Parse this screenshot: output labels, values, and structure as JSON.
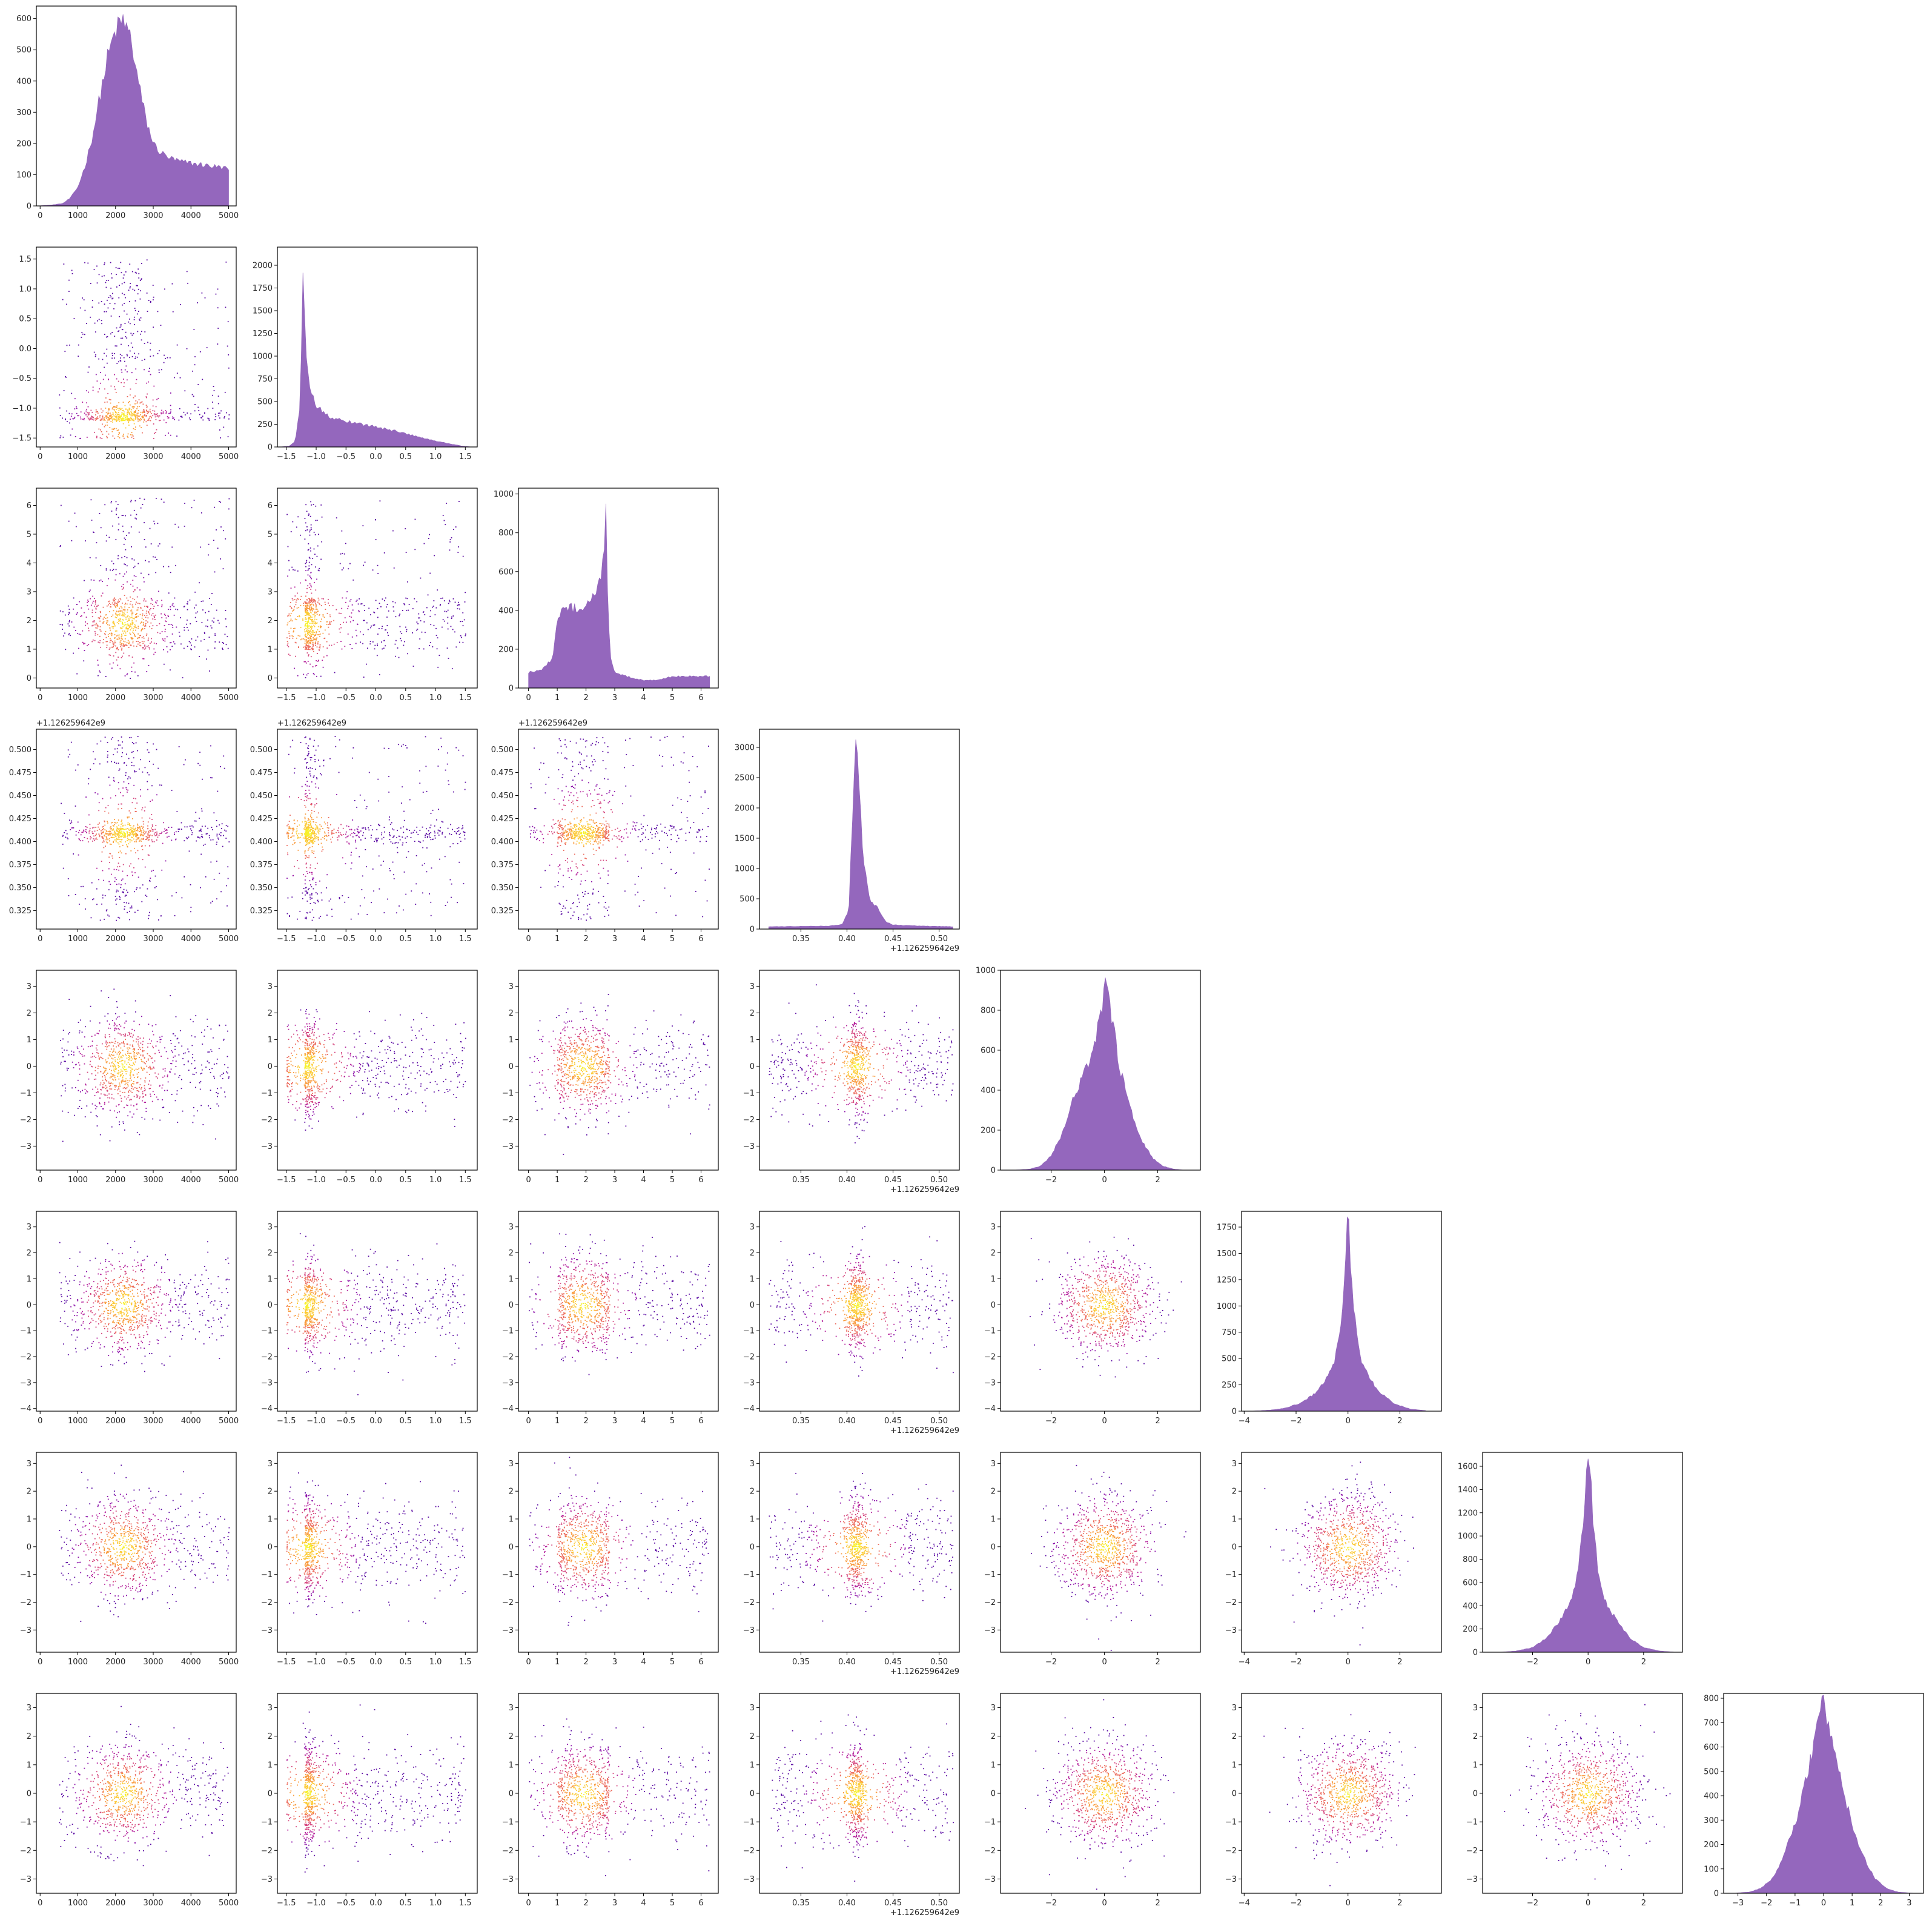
{
  "chart_data": {
    "type": "corner-plot",
    "n_vars": 8,
    "hist_color": "#9467bd",
    "cmap": [
      "#5a0aa3",
      "#8a0ea8",
      "#b31e9a",
      "#d4437c",
      "#ec6a5c",
      "#f99a3b",
      "#fcca35",
      "#f7f02a"
    ],
    "grid": false,
    "legend": "none",
    "variables": [
      {
        "lim": [
          -100,
          5200
        ],
        "ticks": [
          0,
          1000,
          2000,
          3000,
          4000,
          5000
        ],
        "tick_labels": [
          "0",
          "1000",
          "2000",
          "3000",
          "4000",
          "5000"
        ],
        "offset_label": ""
      },
      {
        "lim": [
          -1.65,
          1.7
        ],
        "ticks": [
          -1.5,
          -1.0,
          -0.5,
          0.0,
          0.5,
          1.0,
          1.5
        ],
        "tick_labels": [
          "−1.5",
          "−1.0",
          "−0.5",
          "0.0",
          "0.5",
          "1.0",
          "1.5"
        ],
        "offset_label": ""
      },
      {
        "lim": [
          -0.35,
          6.6
        ],
        "ticks": [
          0,
          1,
          2,
          3,
          4,
          5,
          6
        ],
        "tick_labels": [
          "0",
          "1",
          "2",
          "3",
          "4",
          "5",
          "6"
        ],
        "offset_label": ""
      },
      {
        "lim": [
          0.305,
          0.522
        ],
        "ticks": [
          0.325,
          0.35,
          0.375,
          0.4,
          0.425,
          0.45,
          0.475,
          0.5
        ],
        "tick_labels": [
          "0.325",
          "0.350",
          "0.375",
          "0.400",
          "0.425",
          "0.450",
          "0.475",
          "0.500"
        ],
        "x_ticks": [
          0.35,
          0.4,
          0.45,
          0.5
        ],
        "x_tick_labels": [
          "0.35",
          "0.40",
          "0.45",
          "0.50"
        ],
        "offset_label": "+1.126259642e9"
      },
      {
        "lim": [
          -3.9,
          3.6
        ],
        "ticks": [
          -3,
          -2,
          -1,
          0,
          1,
          2,
          3
        ],
        "tick_labels": [
          "−3",
          "−2",
          "−1",
          "0",
          "1",
          "2",
          "3"
        ],
        "x_ticks": [
          -2,
          0,
          2
        ],
        "x_tick_labels": [
          "−2",
          "0",
          "2"
        ],
        "offset_label": ""
      },
      {
        "lim": [
          -4.1,
          3.6
        ],
        "ticks": [
          -4,
          -3,
          -2,
          -1,
          0,
          1,
          2,
          3
        ],
        "tick_labels": [
          "−4",
          "−3",
          "−2",
          "−1",
          "0",
          "1",
          "2",
          "3"
        ],
        "x_ticks": [
          -4,
          -2,
          0,
          2
        ],
        "x_tick_labels": [
          "−4",
          "−2",
          "0",
          "2"
        ],
        "offset_label": ""
      },
      {
        "lim": [
          -3.8,
          3.4
        ],
        "ticks": [
          -3,
          -2,
          -1,
          0,
          1,
          2,
          3
        ],
        "tick_labels": [
          "−3",
          "−2",
          "−1",
          "0",
          "1",
          "2",
          "3"
        ],
        "x_ticks": [
          -2,
          0,
          2
        ],
        "x_tick_labels": [
          "−2",
          "0",
          "2"
        ],
        "offset_label": ""
      },
      {
        "lim": [
          -3.5,
          3.5
        ],
        "ticks": [
          -3,
          -2,
          -1,
          0,
          1,
          2,
          3
        ],
        "tick_labels": [
          "−3",
          "−2",
          "−1",
          "0",
          "1",
          "2",
          "3"
        ],
        "offset_label": ""
      }
    ],
    "histograms": [
      {
        "ylim": [
          0,
          640
        ],
        "yticks": [
          0,
          100,
          200,
          300,
          400,
          500,
          600
        ],
        "ytick_labels": [
          "0",
          "100",
          "200",
          "300",
          "400",
          "500",
          "600"
        ],
        "x": [
          -50,
          300,
          600,
          800,
          1000,
          1200,
          1400,
          1600,
          1800,
          2000,
          2200,
          2400,
          2600,
          2800,
          3000,
          3200,
          3500,
          3800,
          4100,
          4400,
          4700,
          5000
        ],
        "counts": [
          0,
          3,
          8,
          25,
          60,
          130,
          230,
          360,
          480,
          560,
          595,
          540,
          400,
          280,
          200,
          170,
          150,
          140,
          135,
          130,
          125,
          120
        ]
      },
      {
        "ylim": [
          0,
          2200
        ],
        "yticks": [
          0,
          250,
          500,
          750,
          1000,
          1250,
          1500,
          1750,
          2000
        ],
        "ytick_labels": [
          "0",
          "250",
          "500",
          "750",
          "1000",
          "1250",
          "1500",
          "1750",
          "2000"
        ],
        "x": [
          -1.6,
          -1.45,
          -1.35,
          -1.28,
          -1.24,
          -1.22,
          -1.2,
          -1.17,
          -1.12,
          -1.0,
          -0.8,
          -0.6,
          -0.3,
          0.0,
          0.3,
          0.6,
          0.9,
          1.2,
          1.45,
          1.6
        ],
        "counts": [
          0,
          10,
          60,
          400,
          1200,
          2050,
          1600,
          1000,
          700,
          450,
          340,
          300,
          260,
          220,
          180,
          130,
          80,
          40,
          10,
          0
        ]
      },
      {
        "ylim": [
          0,
          1030
        ],
        "yticks": [
          0,
          200,
          400,
          600,
          800,
          1000
        ],
        "ytick_labels": [
          "0",
          "200",
          "400",
          "600",
          "800",
          "1000"
        ],
        "x": [
          0,
          0.5,
          0.85,
          1.0,
          1.4,
          1.8,
          2.2,
          2.5,
          2.62,
          2.68,
          2.75,
          2.85,
          3.0,
          3.4,
          4.0,
          4.5,
          5.0,
          5.5,
          6.0,
          6.3
        ],
        "counts": [
          80,
          100,
          150,
          380,
          420,
          400,
          470,
          560,
          700,
          970,
          500,
          150,
          80,
          60,
          40,
          40,
          60,
          60,
          60,
          60
        ]
      },
      {
        "ylim": [
          0,
          3300
        ],
        "yticks": [
          0,
          500,
          1000,
          1500,
          2000,
          2500,
          3000
        ],
        "ytick_labels": [
          "0",
          "500",
          "1000",
          "1500",
          "2000",
          "2500",
          "3000"
        ],
        "x": [
          0.315,
          0.38,
          0.395,
          0.402,
          0.405,
          0.408,
          0.41,
          0.413,
          0.417,
          0.422,
          0.427,
          0.432,
          0.437,
          0.442,
          0.45,
          0.48,
          0.515
        ],
        "counts": [
          40,
          50,
          80,
          300,
          1500,
          2800,
          3100,
          2400,
          1300,
          700,
          420,
          380,
          250,
          120,
          70,
          50,
          40
        ]
      },
      {
        "ylim": [
          0,
          1000
        ],
        "yticks": [
          0,
          200,
          400,
          600,
          800,
          1000
        ],
        "ytick_labels": [
          "0",
          "200",
          "400",
          "600",
          "800",
          "1000"
        ],
        "x": [
          -3.4,
          -2.8,
          -2.4,
          -2.0,
          -1.6,
          -1.2,
          -0.8,
          -0.4,
          -0.1,
          0.0,
          0.1,
          0.3,
          0.6,
          1.0,
          1.4,
          1.8,
          2.2,
          2.6,
          3.0
        ],
        "counts": [
          0,
          5,
          20,
          70,
          180,
          340,
          480,
          600,
          800,
          950,
          900,
          750,
          500,
          300,
          150,
          60,
          20,
          5,
          0
        ]
      },
      {
        "ylim": [
          0,
          1900
        ],
        "yticks": [
          0,
          250,
          500,
          750,
          1000,
          1250,
          1500,
          1750
        ],
        "ytick_labels": [
          "0",
          "250",
          "500",
          "750",
          "1000",
          "1250",
          "1500",
          "1750"
        ],
        "x": [
          -3.8,
          -3.0,
          -2.4,
          -1.8,
          -1.2,
          -0.8,
          -0.5,
          -0.3,
          -0.15,
          -0.05,
          0.0,
          0.05,
          0.15,
          0.3,
          0.5,
          0.8,
          1.2,
          1.8,
          2.4,
          3.0
        ],
        "counts": [
          0,
          10,
          30,
          80,
          180,
          320,
          500,
          800,
          1200,
          1650,
          1830,
          1650,
          1200,
          800,
          500,
          320,
          180,
          70,
          20,
          5
        ]
      },
      {
        "ylim": [
          0,
          1720
        ],
        "yticks": [
          0,
          200,
          400,
          600,
          800,
          1000,
          1200,
          1400,
          1600
        ],
        "ytick_labels": [
          "0",
          "200",
          "400",
          "600",
          "800",
          "1000",
          "1200",
          "1400",
          "1600"
        ],
        "x": [
          -3.2,
          -2.6,
          -2.0,
          -1.5,
          -1.0,
          -0.6,
          -0.35,
          -0.2,
          -0.1,
          0.0,
          0.1,
          0.2,
          0.35,
          0.6,
          1.0,
          1.5,
          2.0,
          2.6,
          3.2
        ],
        "counts": [
          0,
          10,
          40,
          120,
          280,
          450,
          700,
          1050,
          1450,
          1660,
          1450,
          1050,
          700,
          450,
          280,
          120,
          40,
          10,
          0
        ]
      },
      {
        "ylim": [
          0,
          820
        ],
        "yticks": [
          0,
          100,
          200,
          300,
          400,
          500,
          600,
          700,
          800
        ],
        "ytick_labels": [
          "0",
          "100",
          "200",
          "300",
          "400",
          "500",
          "600",
          "700",
          "800"
        ],
        "x": [
          -3.2,
          -2.6,
          -2.2,
          -1.8,
          -1.4,
          -1.0,
          -0.7,
          -0.4,
          -0.2,
          0.0,
          0.2,
          0.4,
          0.7,
          1.0,
          1.4,
          1.8,
          2.2,
          2.6,
          3.2
        ],
        "counts": [
          0,
          5,
          20,
          60,
          150,
          280,
          420,
          580,
          700,
          780,
          700,
          580,
          420,
          280,
          150,
          60,
          20,
          5,
          0
        ]
      }
    ]
  }
}
